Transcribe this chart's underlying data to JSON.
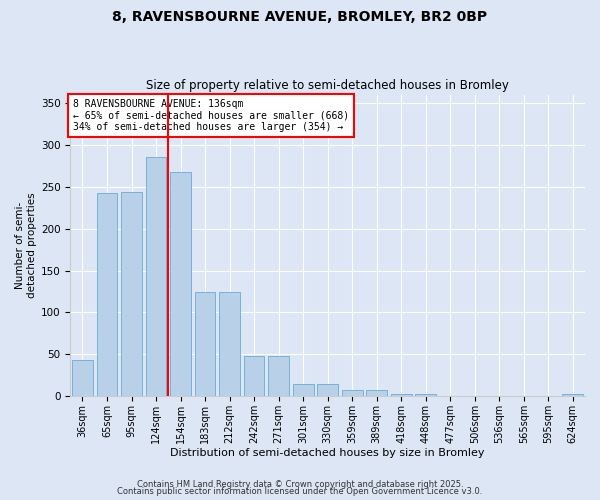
{
  "title1": "8, RAVENSBOURNE AVENUE, BROMLEY, BR2 0BP",
  "title2": "Size of property relative to semi-detached houses in Bromley",
  "xlabel": "Distribution of semi-detached houses by size in Bromley",
  "ylabel": "Number of semi-\ndetached properties",
  "categories": [
    "36sqm",
    "65sqm",
    "95sqm",
    "124sqm",
    "154sqm",
    "183sqm",
    "212sqm",
    "242sqm",
    "271sqm",
    "301sqm",
    "330sqm",
    "359sqm",
    "389sqm",
    "418sqm",
    "448sqm",
    "477sqm",
    "506sqm",
    "536sqm",
    "565sqm",
    "595sqm",
    "624sqm"
  ],
  "values": [
    43,
    243,
    244,
    286,
    268,
    125,
    124,
    48,
    48,
    15,
    15,
    8,
    8,
    3,
    3,
    0,
    0,
    0,
    0,
    0,
    3
  ],
  "bar_color": "#b8d0e8",
  "bar_edge_color": "#6aaad4",
  "vline_x": 3.5,
  "vline_color": "red",
  "annotation_title": "8 RAVENSBOURNE AVENUE: 136sqm",
  "annotation_line1": "← 65% of semi-detached houses are smaller (668)",
  "annotation_line2": "34% of semi-detached houses are larger (354) →",
  "annotation_box_color": "white",
  "annotation_box_edge": "red",
  "footnote1": "Contains HM Land Registry data © Crown copyright and database right 2025.",
  "footnote2": "Contains public sector information licensed under the Open Government Licence v3.0.",
  "bg_color": "#dce6f5",
  "plot_bg_color": "#dce6f5",
  "ylim": [
    0,
    360
  ],
  "yticks": [
    0,
    50,
    100,
    150,
    200,
    250,
    300,
    350
  ]
}
